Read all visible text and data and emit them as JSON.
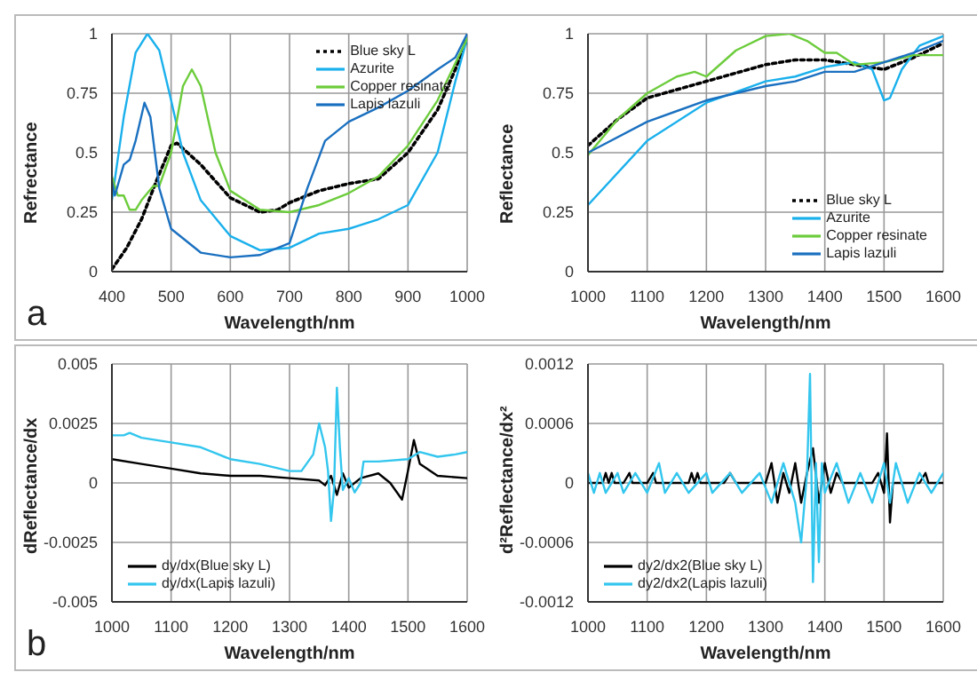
{
  "chart_data": [
    {
      "type": "line",
      "xlabel": "Wavelength/nm",
      "ylabel": "Refrectance",
      "annotations": [
        "a"
      ],
      "xlim": [
        400,
        1000
      ],
      "xticks": [
        400,
        500,
        600,
        700,
        800,
        900,
        1000
      ],
      "ylim": [
        0,
        1
      ],
      "yticks": [
        0,
        0.25,
        0.5,
        0.75,
        1
      ],
      "grid": true,
      "legend": "top right",
      "marker": "none",
      "series": [
        {
          "name": "Blue sky L",
          "color": "#000000",
          "line_style": "dotted",
          "x": [
            400,
            425,
            450,
            475,
            500,
            510,
            550,
            600,
            650,
            680,
            700,
            750,
            800,
            850,
            900,
            950,
            980,
            1000
          ],
          "values": [
            0.01,
            0.1,
            0.22,
            0.38,
            0.53,
            0.54,
            0.45,
            0.31,
            0.25,
            0.26,
            0.29,
            0.34,
            0.37,
            0.39,
            0.5,
            0.68,
            0.85,
            0.98
          ]
        },
        {
          "name": "Azurite",
          "color": "#1ab0ec",
          "x": [
            400,
            420,
            440,
            460,
            480,
            500,
            520,
            550,
            600,
            650,
            700,
            750,
            800,
            850,
            900,
            950,
            980,
            1000
          ],
          "values": [
            0.3,
            0.65,
            0.92,
            1,
            0.93,
            0.72,
            0.5,
            0.3,
            0.15,
            0.09,
            0.1,
            0.16,
            0.18,
            0.22,
            0.28,
            0.5,
            0.8,
            0.98
          ]
        },
        {
          "name": "Copper resinate",
          "color": "#6ccc3c",
          "x": [
            400,
            410,
            420,
            430,
            440,
            450,
            460,
            470,
            480,
            500,
            520,
            535,
            550,
            575,
            600,
            650,
            700,
            750,
            800,
            850,
            900,
            950,
            1000
          ],
          "values": [
            0.4,
            0.32,
            0.32,
            0.26,
            0.26,
            0.3,
            0.33,
            0.36,
            0.36,
            0.5,
            0.78,
            0.85,
            0.78,
            0.5,
            0.34,
            0.26,
            0.25,
            0.28,
            0.33,
            0.4,
            0.53,
            0.72,
            0.98
          ]
        },
        {
          "name": "Lapis lazuli",
          "color": "#1a70c0",
          "x": [
            400,
            405,
            420,
            430,
            440,
            455,
            465,
            480,
            500,
            550,
            600,
            650,
            700,
            730,
            760,
            800,
            850,
            900,
            950,
            980,
            1000
          ],
          "values": [
            0.38,
            0.32,
            0.45,
            0.47,
            0.55,
            0.71,
            0.65,
            0.35,
            0.18,
            0.08,
            0.06,
            0.07,
            0.12,
            0.35,
            0.55,
            0.63,
            0.69,
            0.76,
            0.85,
            0.9,
            1
          ]
        }
      ]
    },
    {
      "type": "line",
      "xlabel": "Wavelength/nm",
      "ylabel": "Reflectance",
      "xlim": [
        1000,
        1600
      ],
      "xticks": [
        1000,
        1100,
        1200,
        1300,
        1400,
        1500,
        1600
      ],
      "ylim": [
        0,
        1
      ],
      "yticks": [
        0,
        0.25,
        0.5,
        0.75,
        1
      ],
      "grid": true,
      "legend": "bottom right",
      "marker": "none",
      "series": [
        {
          "name": "Blue sky L",
          "color": "#000000",
          "line_style": "dotted",
          "x": [
            1000,
            1050,
            1100,
            1200,
            1300,
            1350,
            1400,
            1450,
            1500,
            1550,
            1600
          ],
          "values": [
            0.53,
            0.64,
            0.73,
            0.8,
            0.87,
            0.89,
            0.89,
            0.87,
            0.85,
            0.9,
            0.96
          ]
        },
        {
          "name": "Azurite",
          "color": "#1ab0ec",
          "x": [
            1000,
            1100,
            1200,
            1300,
            1350,
            1400,
            1450,
            1480,
            1500,
            1510,
            1530,
            1560,
            1600
          ],
          "values": [
            0.28,
            0.55,
            0.71,
            0.8,
            0.82,
            0.86,
            0.88,
            0.85,
            0.72,
            0.73,
            0.85,
            0.95,
            0.99
          ]
        },
        {
          "name": "Copper resinate",
          "color": "#6ccc3c",
          "x": [
            1000,
            1050,
            1100,
            1150,
            1180,
            1200,
            1250,
            1300,
            1340,
            1370,
            1400,
            1420,
            1450,
            1500,
            1550,
            1600
          ],
          "values": [
            0.49,
            0.64,
            0.75,
            0.82,
            0.84,
            0.82,
            0.93,
            0.99,
            1,
            0.97,
            0.92,
            0.92,
            0.87,
            0.88,
            0.91,
            0.91
          ]
        },
        {
          "name": "Lapis lazuli",
          "color": "#1a70c0",
          "x": [
            1000,
            1100,
            1200,
            1300,
            1350,
            1400,
            1450,
            1500,
            1550,
            1600
          ],
          "values": [
            0.5,
            0.63,
            0.72,
            0.78,
            0.8,
            0.84,
            0.84,
            0.88,
            0.92,
            0.97
          ]
        }
      ]
    },
    {
      "type": "line",
      "xlabel": "Wavelength/nm",
      "ylabel": "dReflectance/dx",
      "annotations": [
        "b"
      ],
      "xlim": [
        1000,
        1600
      ],
      "xticks": [
        1000,
        1100,
        1200,
        1300,
        1400,
        1500,
        1600
      ],
      "ylim": [
        -0.005,
        0.005
      ],
      "yticks": [
        -0.005,
        -0.0025,
        0,
        0.0025,
        0.005
      ],
      "grid": true,
      "legend": "bottom left",
      "marker": "none",
      "series": [
        {
          "name": "dy/dx(Blue sky L)",
          "color": "#000000",
          "x": [
            1000,
            1050,
            1100,
            1150,
            1200,
            1250,
            1300,
            1350,
            1360,
            1370,
            1380,
            1390,
            1400,
            1420,
            1450,
            1470,
            1490,
            1500,
            1510,
            1520,
            1550,
            1600
          ],
          "values": [
            0.001,
            0.0008,
            0.0006,
            0.0004,
            0.0003,
            0.0003,
            0.0002,
            0.0001,
            -0.0001,
            0.0003,
            -0.0005,
            0.0004,
            -0.0002,
            0.0002,
            0.0004,
            0,
            -0.0007,
            0.0005,
            0.0018,
            0.0008,
            0.0003,
            0.0002
          ]
        },
        {
          "name": "dy/dx(Lapis lazuli)",
          "color": "#33c6ee",
          "x": [
            1000,
            1020,
            1030,
            1050,
            1100,
            1150,
            1200,
            1250,
            1300,
            1320,
            1340,
            1350,
            1360,
            1365,
            1370,
            1375,
            1380,
            1385,
            1390,
            1400,
            1410,
            1420,
            1425,
            1450,
            1500,
            1520,
            1550,
            1580,
            1600
          ],
          "values": [
            0.002,
            0.002,
            0.0021,
            0.0019,
            0.0017,
            0.0015,
            0.001,
            0.0008,
            0.0005,
            0.0005,
            0.0012,
            0.0025,
            0.0015,
            0.0005,
            -0.0016,
            -0.0003,
            0.004,
            0.0015,
            -0.0003,
            0.0002,
            -0.0004,
            0,
            0.0009,
            0.0009,
            0.001,
            0.0013,
            0.0011,
            0.0012,
            0.0013
          ]
        }
      ]
    },
    {
      "type": "line",
      "xlabel": "Wavelength/nm",
      "ylabel": "d²Reflectance/dx²",
      "xlim": [
        1000,
        1600
      ],
      "xticks": [
        1000,
        1100,
        1200,
        1300,
        1400,
        1500,
        1600
      ],
      "ylim": [
        -0.0012,
        0.0012
      ],
      "yticks": [
        -0.0012,
        -0.0006,
        0,
        0.0006,
        0.0012
      ],
      "grid": true,
      "legend": "bottom left",
      "marker": "none",
      "series": [
        {
          "name": "dy2/dx2(Blue sky L)",
          "color": "#000000",
          "x": [
            1000,
            1025,
            1030,
            1035,
            1040,
            1045,
            1060,
            1070,
            1075,
            1100,
            1110,
            1115,
            1170,
            1175,
            1180,
            1185,
            1190,
            1230,
            1240,
            1250,
            1300,
            1310,
            1320,
            1330,
            1340,
            1350,
            1360,
            1370,
            1380,
            1390,
            1400,
            1410,
            1420,
            1430,
            1480,
            1490,
            1500,
            1505,
            1510,
            1515,
            1560,
            1570,
            1575,
            1600
          ],
          "values": [
            0,
            0,
            0.0001,
            0,
            0.0001,
            0,
            0,
            0.0001,
            0,
            0,
            0.0001,
            0,
            0,
            0.0001,
            0,
            0.0001,
            0,
            0,
            0.0001,
            0,
            0,
            0.0002,
            -0.0002,
            0.0001,
            -0.0001,
            0.0002,
            -0.0002,
            0.0001,
            0.00035,
            -0.0002,
            0.0002,
            -0.0001,
            0.0001,
            0,
            0,
            0.0001,
            -0.0001,
            0.0005,
            -0.0004,
            0,
            0,
            0.0001,
            0,
            0
          ]
        },
        {
          "name": "dy2/dx2(Lapis lazuli)",
          "color": "#33c6ee",
          "x": [
            1000,
            1010,
            1020,
            1030,
            1050,
            1060,
            1080,
            1100,
            1120,
            1130,
            1150,
            1170,
            1200,
            1210,
            1240,
            1260,
            1290,
            1310,
            1330,
            1350,
            1360,
            1370,
            1375,
            1380,
            1385,
            1390,
            1395,
            1400,
            1420,
            1440,
            1460,
            1480,
            1500,
            1510,
            1520,
            1540,
            1560,
            1580,
            1600
          ],
          "values": [
            0.0001,
            -0.0001,
            0.0001,
            -0.0001,
            0.0001,
            -0.0001,
            0.0001,
            -0.0001,
            0.0002,
            -0.0001,
            0.0001,
            -0.0001,
            0.0001,
            -0.0001,
            0.0001,
            -0.0001,
            0.0001,
            -0.0002,
            0.0002,
            -0.0002,
            -0.0006,
            0.0001,
            0.0011,
            -0.001,
            0.0002,
            -0.0008,
            0.0002,
            -0.0001,
            0.0002,
            -0.0002,
            0.0001,
            -0.0002,
            0.0002,
            -0.0002,
            0.0002,
            -0.0002,
            0.0001,
            -0.0001,
            0.0001
          ]
        }
      ]
    }
  ]
}
